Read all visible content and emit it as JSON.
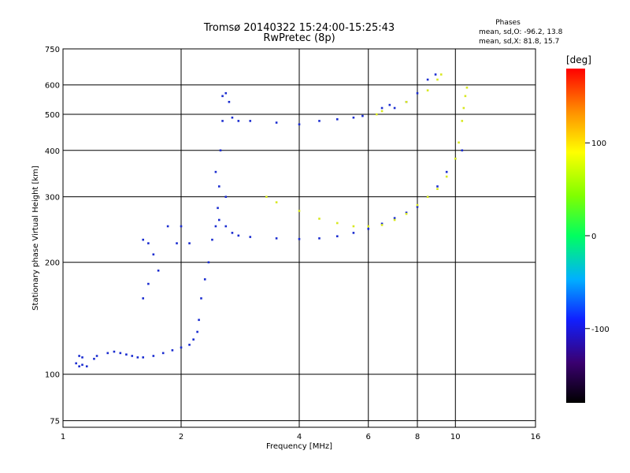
{
  "chart_data": {
    "type": "scatter",
    "title": "Tromsø 20140322 15:24:00-15:25:43",
    "subtitle": "RwPretec (8p)",
    "phase_info": {
      "heading": "Phases",
      "line_o": "mean, sd,O: -96.2, 13.8",
      "line_x": "mean, sd,X:  81.8, 15.7"
    },
    "xlabel": "Frequency [MHz]",
    "ylabel": "Stationary phase Virtual Height [km]",
    "x_scale": "log",
    "y_scale": "log",
    "xlim": [
      1,
      16
    ],
    "ylim": [
      72,
      750
    ],
    "x_ticks": [
      1,
      2,
      4,
      6,
      8,
      10,
      16
    ],
    "x_tick_labels": [
      "1",
      "2",
      "4",
      "6",
      "8",
      "10",
      "16"
    ],
    "y_ticks": [
      75,
      100,
      200,
      300,
      400,
      500,
      600,
      750
    ],
    "y_tick_labels": [
      "75",
      "100",
      "200",
      "300",
      "400",
      "500",
      "600",
      "750"
    ],
    "grid": true,
    "colorbar": {
      "label": "[deg]",
      "range": [
        -180,
        180
      ],
      "ticks": [
        100,
        0,
        -100
      ],
      "tick_labels": [
        "100",
        "0",
        "-100"
      ]
    },
    "series": [
      {
        "color_phase": -100,
        "points": [
          [
            1.08,
            107
          ],
          [
            1.1,
            105
          ],
          [
            1.12,
            106
          ],
          [
            1.15,
            105
          ],
          [
            1.1,
            112
          ],
          [
            1.12,
            111
          ],
          [
            1.2,
            110
          ],
          [
            1.22,
            112
          ],
          [
            1.3,
            114
          ],
          [
            1.35,
            115
          ],
          [
            1.4,
            114
          ],
          [
            1.45,
            113
          ],
          [
            1.5,
            112
          ],
          [
            1.55,
            111
          ],
          [
            1.6,
            111
          ],
          [
            1.7,
            112
          ],
          [
            1.8,
            114
          ],
          [
            1.9,
            116
          ],
          [
            2.0,
            118
          ],
          [
            2.1,
            120
          ],
          [
            2.15,
            124
          ],
          [
            2.2,
            130
          ],
          [
            2.22,
            140
          ],
          [
            2.25,
            160
          ],
          [
            2.3,
            180
          ],
          [
            2.35,
            200
          ],
          [
            2.4,
            230
          ],
          [
            2.45,
            250
          ],
          [
            2.48,
            280
          ],
          [
            2.5,
            320
          ],
          [
            2.52,
            400
          ],
          [
            2.55,
            480
          ],
          [
            2.55,
            560
          ],
          [
            2.6,
            570
          ],
          [
            2.65,
            540
          ],
          [
            2.6,
            300
          ],
          [
            2.45,
            350
          ],
          [
            2.5,
            260
          ],
          [
            2.6,
            250
          ],
          [
            2.7,
            240
          ],
          [
            2.8,
            236
          ],
          [
            3.0,
            234
          ],
          [
            3.5,
            232
          ],
          [
            4.0,
            231
          ],
          [
            4.5,
            232
          ],
          [
            5.0,
            235
          ],
          [
            5.5,
            240
          ],
          [
            6.0,
            246
          ],
          [
            6.5,
            254
          ],
          [
            7.0,
            263
          ],
          [
            7.5,
            272
          ],
          [
            8.0,
            282
          ],
          [
            8.5,
            300
          ],
          [
            9.0,
            320
          ],
          [
            9.5,
            350
          ],
          [
            10.0,
            380
          ],
          [
            10.4,
            400
          ],
          [
            1.6,
            230
          ],
          [
            1.65,
            225
          ],
          [
            1.7,
            210
          ],
          [
            1.75,
            190
          ],
          [
            1.65,
            175
          ],
          [
            1.6,
            160
          ],
          [
            1.85,
            250
          ],
          [
            2.0,
            250
          ],
          [
            1.95,
            225
          ],
          [
            2.1,
            225
          ],
          [
            3.0,
            480
          ],
          [
            3.5,
            475
          ],
          [
            4.0,
            470
          ],
          [
            4.5,
            480
          ],
          [
            5.0,
            485
          ],
          [
            5.5,
            490
          ],
          [
            5.8,
            495
          ],
          [
            2.7,
            490
          ],
          [
            2.8,
            480
          ],
          [
            7.0,
            520
          ],
          [
            7.5,
            540
          ],
          [
            8.0,
            570
          ],
          [
            8.5,
            620
          ],
          [
            8.9,
            640
          ],
          [
            6.5,
            520
          ],
          [
            6.8,
            530
          ]
        ]
      },
      {
        "color_phase": 82,
        "points": [
          [
            3.3,
            300
          ],
          [
            3.5,
            290
          ],
          [
            4.0,
            275
          ],
          [
            4.5,
            262
          ],
          [
            5.0,
            255
          ],
          [
            5.5,
            250
          ],
          [
            6.0,
            250
          ],
          [
            6.5,
            252
          ],
          [
            7.0,
            260
          ],
          [
            7.5,
            270
          ],
          [
            8.0,
            285
          ],
          [
            8.5,
            300
          ],
          [
            9.0,
            315
          ],
          [
            9.5,
            340
          ],
          [
            10.0,
            380
          ],
          [
            10.2,
            420
          ],
          [
            10.4,
            480
          ],
          [
            10.5,
            520
          ],
          [
            10.6,
            560
          ],
          [
            10.7,
            590
          ],
          [
            8.5,
            580
          ],
          [
            9.0,
            620
          ],
          [
            9.2,
            640
          ],
          [
            6.3,
            500
          ],
          [
            6.5,
            510
          ],
          [
            7.5,
            540
          ]
        ]
      }
    ]
  }
}
